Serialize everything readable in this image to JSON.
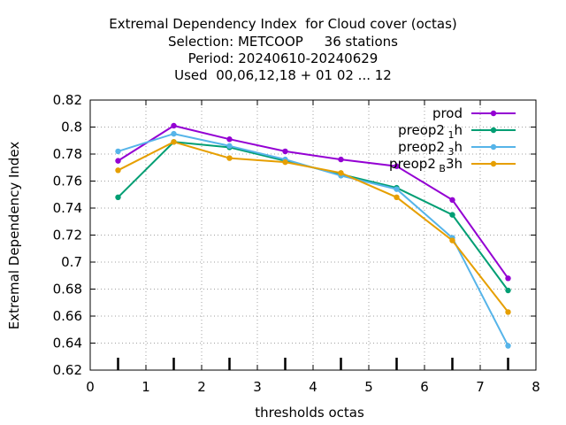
{
  "title_lines": [
    "Extremal Dependency Index  for Cloud cover (octas)",
    "Selection: METCOOP     36 stations",
    "Period: 20240610-20240629",
    "Used  00,06,12,18 + 01 02 ... 12"
  ],
  "chart_data": {
    "type": "line",
    "xlabel": "thresholds octas",
    "ylabel": "Extremal Dependency Index",
    "xlim": [
      0,
      8
    ],
    "ylim": [
      0.62,
      0.82
    ],
    "xticks": [
      "0",
      "1",
      "2",
      "3",
      "4",
      "5",
      "6",
      "7",
      "8"
    ],
    "yticks": [
      "0.62",
      "0.64",
      "0.66",
      "0.68",
      "0.7",
      "0.72",
      "0.74",
      "0.76",
      "0.78",
      "0.8",
      "0.82"
    ],
    "grid": true,
    "legend_position": "top-right",
    "threshold_marks": [
      0.5,
      1.5,
      2.5,
      3.5,
      4.5,
      5.5,
      6.5,
      7.5
    ],
    "x": [
      0.5,
      1.5,
      2.5,
      3.5,
      4.5,
      5.5,
      6.5,
      7.5
    ],
    "series": [
      {
        "name": "prod",
        "sub": "",
        "suffix": "",
        "color": "#9400d3",
        "values": [
          0.775,
          0.801,
          0.791,
          0.782,
          0.776,
          0.771,
          0.746,
          0.688
        ]
      },
      {
        "name": "preop2",
        "sub": "1",
        "suffix": "h",
        "color": "#009e73",
        "values": [
          0.748,
          0.789,
          0.785,
          0.775,
          0.765,
          0.755,
          0.735,
          0.679
        ]
      },
      {
        "name": "preop2",
        "sub": "3",
        "suffix": "h",
        "color": "#56b4e9",
        "values": [
          0.782,
          0.795,
          0.786,
          0.776,
          0.764,
          0.754,
          0.718,
          0.638
        ]
      },
      {
        "name": "preop2",
        "sub": "B",
        "suffix": "3h",
        "color": "#e69f00",
        "values": [
          0.768,
          0.789,
          0.777,
          0.774,
          0.766,
          0.748,
          0.716,
          0.663
        ]
      }
    ]
  }
}
